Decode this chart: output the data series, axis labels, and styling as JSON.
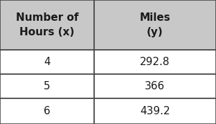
{
  "col1_header": "Number of\nHours (x)",
  "col2_header": "Miles\n(y)",
  "rows": [
    [
      "4",
      "292.8"
    ],
    [
      "5",
      "366"
    ],
    [
      "6",
      "439.2"
    ]
  ],
  "header_bg": "#c8c8c8",
  "row_bg": "#ffffff",
  "border_color": "#444444",
  "text_color": "#1a1a1a",
  "fig_bg": "#ffffff",
  "font_size": 11,
  "header_font_size": 11,
  "col_splits": [
    0.0,
    0.435,
    1.0
  ],
  "row_splits": [
    1.0,
    0.595,
    0.405,
    0.205,
    0.0
  ]
}
